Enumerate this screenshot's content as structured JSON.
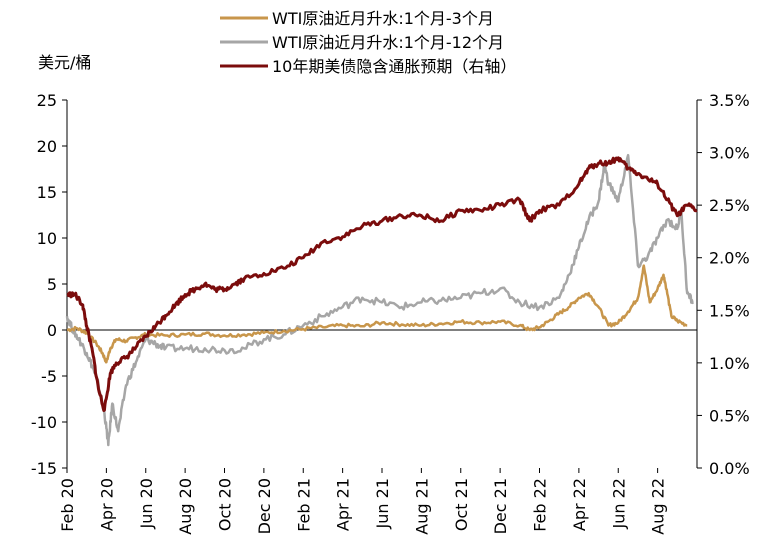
{
  "chart_data": {
    "type": "line",
    "title": "",
    "y_unit_label": "美元/桶",
    "xlabel": "",
    "ylabel": "",
    "x_ticks": [
      "Feb 20",
      "Apr 20",
      "Jun 20",
      "Aug 20",
      "Oct 20",
      "Dec 20",
      "Feb 21",
      "Apr 21",
      "Jun 21",
      "Aug 21",
      "Oct 21",
      "Dec 21",
      "Feb 22",
      "Apr 22",
      "Jun 22",
      "Aug 22"
    ],
    "x_range_months": [
      0,
      30.4
    ],
    "y_left": {
      "min": -15,
      "max": 25,
      "ticks": [
        25,
        20,
        15,
        10,
        5,
        0,
        -5,
        -10,
        -15
      ],
      "tick_labels": [
        "25",
        "20",
        "15",
        "10",
        "5",
        "0",
        "-5",
        "-10",
        "-15"
      ]
    },
    "y_right": {
      "min": 0,
      "max": 3.5,
      "ticks": [
        3.5,
        3.0,
        2.5,
        2.0,
        1.5,
        1.0,
        0.5,
        0.0
      ],
      "tick_labels": [
        "3.5%",
        "3.0%",
        "2.5%",
        "2.0%",
        "1.5%",
        "1.0%",
        "0.5%",
        "0.0%"
      ]
    },
    "legend_position": "top",
    "grid": false,
    "series": [
      {
        "name": "WTI原油近月升水:1个月-3个月",
        "axis": "left",
        "color": "#C8964B",
        "points": [
          [
            0,
            0
          ],
          [
            0.5,
            0.2
          ],
          [
            1,
            -0.3
          ],
          [
            1.5,
            -1.5
          ],
          [
            1.8,
            -2.5
          ],
          [
            2.0,
            -3.5
          ],
          [
            2.2,
            -2.0
          ],
          [
            2.5,
            -1.0
          ],
          [
            3,
            -1.2
          ],
          [
            3.5,
            -0.8
          ],
          [
            4,
            -0.5
          ],
          [
            5,
            -0.6
          ],
          [
            6,
            -0.5
          ],
          [
            7,
            -0.4
          ],
          [
            8,
            -0.6
          ],
          [
            9,
            -0.5
          ],
          [
            10,
            -0.3
          ],
          [
            11,
            -0.1
          ],
          [
            12,
            0.1
          ],
          [
            13,
            0.3
          ],
          [
            14,
            0.5
          ],
          [
            15,
            0.4
          ],
          [
            16,
            0.8
          ],
          [
            17,
            0.6
          ],
          [
            18,
            0.5
          ],
          [
            19,
            0.7
          ],
          [
            20,
            0.9
          ],
          [
            21,
            0.8
          ],
          [
            22,
            0.9
          ],
          [
            23,
            0.5
          ],
          [
            23.5,
            0
          ],
          [
            24,
            0.3
          ],
          [
            24.5,
            1.0
          ],
          [
            25,
            1.8
          ],
          [
            25.5,
            2.5
          ],
          [
            26,
            3.5
          ],
          [
            26.5,
            4.0
          ],
          [
            27,
            2.5
          ],
          [
            27.5,
            0.5
          ],
          [
            28,
            0.8
          ],
          [
            28.5,
            2.0
          ],
          [
            29,
            3.5
          ],
          [
            29.3,
            7.0
          ],
          [
            29.6,
            3.0
          ],
          [
            30,
            4.5
          ],
          [
            30.3,
            6.0
          ],
          [
            30.4,
            5.0
          ],
          [
            30.7,
            1.5
          ],
          [
            31,
            1.0
          ],
          [
            31.5,
            0.5
          ]
        ]
      },
      {
        "name": "WTI原油近月升水:1个月-12个月",
        "axis": "left",
        "color": "#A6A6A6",
        "points": [
          [
            0,
            1.5
          ],
          [
            0.3,
            0
          ],
          [
            0.6,
            -1.0
          ],
          [
            1,
            -2.5
          ],
          [
            1.3,
            -4.0
          ],
          [
            1.6,
            -6.0
          ],
          [
            1.9,
            -9.0
          ],
          [
            2.1,
            -12.5
          ],
          [
            2.3,
            -8.0
          ],
          [
            2.6,
            -11.0
          ],
          [
            3,
            -6.0
          ],
          [
            3.5,
            -3.5
          ],
          [
            4,
            -1.0
          ],
          [
            4.5,
            -1.5
          ],
          [
            5,
            -2.0
          ],
          [
            6,
            -2.0
          ],
          [
            7,
            -2.0
          ],
          [
            8,
            -2.2
          ],
          [
            9,
            -2.0
          ],
          [
            10,
            -1.0
          ],
          [
            11,
            -0.5
          ],
          [
            12,
            0.5
          ],
          [
            13,
            1.5
          ],
          [
            14,
            2.5
          ],
          [
            15,
            3.5
          ],
          [
            16,
            3.0
          ],
          [
            17,
            2.5
          ],
          [
            18,
            3.0
          ],
          [
            19,
            3.2
          ],
          [
            20,
            3.5
          ],
          [
            21,
            4.0
          ],
          [
            22,
            4.5
          ],
          [
            23,
            3.0
          ],
          [
            24,
            2.5
          ],
          [
            25,
            3.5
          ],
          [
            25.5,
            6.0
          ],
          [
            26,
            9.0
          ],
          [
            26.5,
            12.0
          ],
          [
            27,
            14.0
          ],
          [
            27.3,
            18.0
          ],
          [
            27.5,
            16.0
          ],
          [
            28,
            14.0
          ],
          [
            28.5,
            19.0
          ],
          [
            29,
            7.0
          ],
          [
            29.5,
            8.0
          ],
          [
            30,
            10.0
          ],
          [
            30.5,
            12.0
          ],
          [
            31,
            11.0
          ],
          [
            31.2,
            13.0
          ],
          [
            31.5,
            4.0
          ],
          [
            31.8,
            3.0
          ]
        ]
      },
      {
        "name": "10年期美债隐含通胀预期（右轴）",
        "axis": "right",
        "color": "#7B0C0C",
        "points": [
          [
            0,
            1.65
          ],
          [
            0.4,
            1.65
          ],
          [
            0.8,
            1.55
          ],
          [
            1.0,
            1.35
          ],
          [
            1.3,
            1.1
          ],
          [
            1.6,
            0.75
          ],
          [
            1.9,
            0.55
          ],
          [
            2.2,
            0.9
          ],
          [
            2.5,
            1.0
          ],
          [
            3,
            1.05
          ],
          [
            3.5,
            1.15
          ],
          [
            4,
            1.25
          ],
          [
            4.5,
            1.35
          ],
          [
            5,
            1.45
          ],
          [
            5.5,
            1.55
          ],
          [
            6,
            1.65
          ],
          [
            6.5,
            1.7
          ],
          [
            7,
            1.75
          ],
          [
            7.5,
            1.7
          ],
          [
            8,
            1.7
          ],
          [
            8.5,
            1.75
          ],
          [
            9,
            1.8
          ],
          [
            10,
            1.85
          ],
          [
            11,
            1.9
          ],
          [
            12,
            2.0
          ],
          [
            13,
            2.15
          ],
          [
            14,
            2.2
          ],
          [
            15,
            2.3
          ],
          [
            16,
            2.35
          ],
          [
            17,
            2.4
          ],
          [
            18,
            2.4
          ],
          [
            19,
            2.35
          ],
          [
            20,
            2.45
          ],
          [
            21,
            2.45
          ],
          [
            22,
            2.5
          ],
          [
            23,
            2.55
          ],
          [
            23.5,
            2.35
          ],
          [
            24,
            2.45
          ],
          [
            25,
            2.5
          ],
          [
            26,
            2.7
          ],
          [
            26.5,
            2.85
          ],
          [
            27,
            2.9
          ],
          [
            27.5,
            2.9
          ],
          [
            28,
            2.95
          ],
          [
            28.5,
            2.85
          ],
          [
            29,
            2.8
          ],
          [
            29.5,
            2.75
          ],
          [
            30,
            2.7
          ],
          [
            30.5,
            2.55
          ],
          [
            31,
            2.4
          ],
          [
            31.5,
            2.5
          ],
          [
            32,
            2.45
          ]
        ]
      }
    ]
  }
}
